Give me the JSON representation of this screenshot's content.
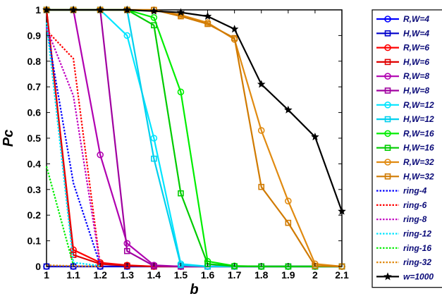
{
  "chart_data": {
    "type": "line",
    "xlabel": "b",
    "ylabel": "Pc",
    "xlim": [
      1,
      2.1
    ],
    "ylim": [
      0,
      1
    ],
    "x_ticks": [
      "1",
      "1.1",
      "1.2",
      "1.3",
      "1.4",
      "1.5",
      "1.6",
      "1.7",
      "1.8",
      "1.9",
      "2",
      "2.1"
    ],
    "y_ticks": [
      "0",
      "0.1",
      "0.2",
      "0.3",
      "0.4",
      "0.5",
      "0.6",
      "0.7",
      "0.8",
      "0.9",
      "1"
    ],
    "grid": false,
    "legend_position": "right",
    "series": [
      {
        "name": "R,W=4",
        "color": "#0000ff",
        "style": "solid",
        "marker": "circle",
        "x": [
          1,
          1.1,
          1.2,
          1.3,
          1.4,
          1.5,
          1.6,
          1.7,
          1.8,
          1.9,
          2,
          2.1
        ],
        "y": [
          0,
          0,
          0,
          0,
          0,
          0,
          0,
          0,
          0,
          0,
          0,
          0
        ]
      },
      {
        "name": "H,W=4",
        "color": "#0000cc",
        "style": "solid",
        "marker": "square",
        "x": [
          1,
          1.1,
          1.2,
          1.3,
          1.4,
          1.5,
          1.6,
          1.7,
          1.8,
          1.9,
          2,
          2.1
        ],
        "y": [
          0,
          0,
          0,
          0,
          0,
          0,
          0,
          0,
          0,
          0,
          0,
          0
        ]
      },
      {
        "name": "R,W=6",
        "color": "#ff0000",
        "style": "solid",
        "marker": "circle",
        "x": [
          1,
          1.1,
          1.2,
          1.3,
          1.4,
          1.5,
          1.6,
          1.7,
          1.8,
          1.9,
          2,
          2.1
        ],
        "y": [
          1,
          0.065,
          0.015,
          0.005,
          0,
          0,
          0,
          0,
          0,
          0,
          0,
          0
        ]
      },
      {
        "name": "H,W=6",
        "color": "#e00000",
        "style": "solid",
        "marker": "square",
        "x": [
          1,
          1.1,
          1.2,
          1.3,
          1.4,
          1.5,
          1.6,
          1.7,
          1.8,
          1.9,
          2,
          2.1
        ],
        "y": [
          1,
          0.045,
          0.01,
          0.003,
          0,
          0,
          0,
          0,
          0,
          0,
          0,
          0
        ]
      },
      {
        "name": "R,W=8",
        "color": "#b000b0",
        "style": "solid",
        "marker": "circle",
        "x": [
          1,
          1.1,
          1.2,
          1.3,
          1.4,
          1.5,
          1.6,
          1.7,
          1.8,
          1.9,
          2,
          2.1
        ],
        "y": [
          1,
          1,
          0.435,
          0.09,
          0.005,
          0,
          0,
          0,
          0,
          0,
          0,
          0
        ]
      },
      {
        "name": "H,W=8",
        "color": "#a000a0",
        "style": "solid",
        "marker": "square",
        "x": [
          1,
          1.1,
          1.2,
          1.3,
          1.4,
          1.5,
          1.6,
          1.7,
          1.8,
          1.9,
          2,
          2.1
        ],
        "y": [
          1,
          1,
          1,
          0.06,
          0.002,
          0,
          0,
          0,
          0,
          0,
          0,
          0
        ]
      },
      {
        "name": "R,W=12",
        "color": "#00e5ff",
        "style": "solid",
        "marker": "circle",
        "x": [
          1,
          1.1,
          1.2,
          1.3,
          1.4,
          1.5,
          1.6,
          1.7,
          1.8,
          1.9,
          2,
          2.1
        ],
        "y": [
          1,
          1,
          1,
          0.9,
          0.5,
          0.01,
          0,
          0,
          0,
          0,
          0,
          0
        ]
      },
      {
        "name": "H,W=12",
        "color": "#00d0ee",
        "style": "solid",
        "marker": "square",
        "x": [
          1,
          1.1,
          1.2,
          1.3,
          1.4,
          1.5,
          1.6,
          1.7,
          1.8,
          1.9,
          2,
          2.1
        ],
        "y": [
          1,
          1,
          1,
          1,
          0.42,
          0.005,
          0,
          0,
          0,
          0,
          0,
          0
        ]
      },
      {
        "name": "R,W=16",
        "color": "#00ee00",
        "style": "solid",
        "marker": "circle",
        "x": [
          1,
          1.1,
          1.2,
          1.3,
          1.4,
          1.5,
          1.6,
          1.7,
          1.8,
          1.9,
          2,
          2.1
        ],
        "y": [
          1,
          1,
          1,
          1,
          0.97,
          0.68,
          0.02,
          0.002,
          0,
          0,
          0,
          0
        ]
      },
      {
        "name": "H,W=16",
        "color": "#00cc00",
        "style": "solid",
        "marker": "square",
        "x": [
          1,
          1.1,
          1.2,
          1.3,
          1.4,
          1.5,
          1.6,
          1.7,
          1.8,
          1.9,
          2,
          2.1
        ],
        "y": [
          1,
          1,
          1,
          1,
          0.94,
          0.285,
          0.01,
          0.001,
          0,
          0,
          0,
          0
        ]
      },
      {
        "name": "R,W=32",
        "color": "#e08a10",
        "style": "solid",
        "marker": "circle",
        "x": [
          1,
          1.1,
          1.2,
          1.3,
          1.4,
          1.5,
          1.6,
          1.7,
          1.8,
          1.9,
          2,
          2.1
        ],
        "y": [
          1,
          1,
          1,
          1,
          1,
          0.98,
          0.95,
          0.885,
          0.53,
          0.255,
          0.01,
          0
        ]
      },
      {
        "name": "H,W=32",
        "color": "#d07a00",
        "style": "solid",
        "marker": "square",
        "x": [
          1,
          1.1,
          1.2,
          1.3,
          1.4,
          1.5,
          1.6,
          1.7,
          1.8,
          1.9,
          2,
          2.1
        ],
        "y": [
          1,
          1,
          1,
          1,
          1,
          0.975,
          0.945,
          0.89,
          0.31,
          0.17,
          0.002,
          0
        ]
      },
      {
        "name": "ring-4",
        "color": "#0000ff",
        "style": "dotted",
        "marker": "none",
        "x": [
          1,
          1.1,
          1.2
        ],
        "y": [
          0.935,
          0.325,
          0.005
        ]
      },
      {
        "name": "ring-6",
        "color": "#ff0000",
        "style": "dotted",
        "marker": "none",
        "x": [
          1,
          1.1,
          1.2
        ],
        "y": [
          0.92,
          0.81,
          0.005
        ]
      },
      {
        "name": "ring-8",
        "color": "#c000c0",
        "style": "dotted",
        "marker": "none",
        "x": [
          1,
          1.1,
          1.2
        ],
        "y": [
          0.93,
          0.665,
          0.005
        ]
      },
      {
        "name": "ring-12",
        "color": "#00e5ff",
        "style": "dotted",
        "marker": "none",
        "x": [
          1,
          1.1,
          1.2
        ],
        "y": [
          0.95,
          0.015,
          0.003
        ]
      },
      {
        "name": "ring-16",
        "color": "#00ee00",
        "style": "dotted",
        "marker": "none",
        "x": [
          1,
          1.1
        ],
        "y": [
          0.39,
          0.005
        ]
      },
      {
        "name": "ring-32",
        "color": "#e08a10",
        "style": "dotted",
        "marker": "none",
        "x": [
          1,
          1.1,
          1.2
        ],
        "y": [
          0.005,
          0.002,
          0
        ]
      },
      {
        "name": "w=1000",
        "color": "#000000",
        "style": "solid",
        "marker": "star",
        "x": [
          1,
          1.1,
          1.2,
          1.3,
          1.4,
          1.5,
          1.6,
          1.7,
          1.8,
          1.9,
          2,
          2.1
        ],
        "y": [
          1,
          1,
          1,
          1,
          0.995,
          0.99,
          0.975,
          0.925,
          0.71,
          0.61,
          0.505,
          0.215
        ]
      }
    ]
  }
}
